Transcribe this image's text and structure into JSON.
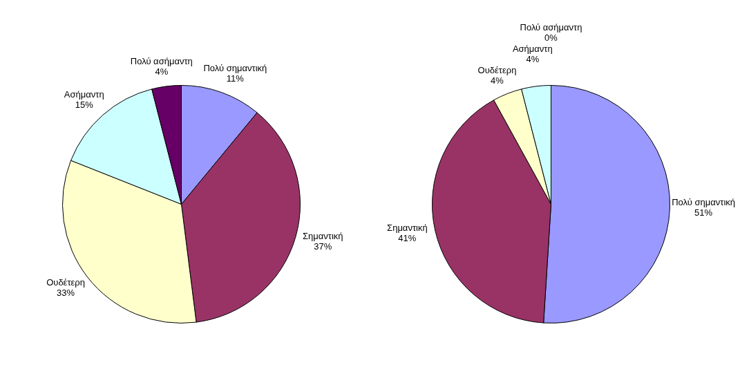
{
  "chart_data": [
    {
      "type": "pie",
      "categories": [
        "Πολύ σημαντική",
        "Σημαντική",
        "Ουδέτερη",
        "Ασήμαντη",
        "Πολύ ασήμαντη"
      ],
      "values": [
        11,
        37,
        33,
        15,
        4
      ],
      "colors": [
        "#9999ff",
        "#993366",
        "#ffffcc",
        "#ccffff",
        "#660066"
      ],
      "value_labels": [
        "11%",
        "37%",
        "33%",
        "15%",
        "4%"
      ],
      "legend": false
    },
    {
      "type": "pie",
      "categories": [
        "Πολύ σημαντική",
        "Σημαντική",
        "Ουδέτερη",
        "Ασήμαντη",
        "Πολύ ασήμαντη"
      ],
      "values": [
        51,
        41,
        4,
        4,
        0
      ],
      "colors": [
        "#9999ff",
        "#993366",
        "#ffffcc",
        "#ccffff",
        "#660066"
      ],
      "value_labels": [
        "51%",
        "41%",
        "4%",
        "4%",
        "0%"
      ],
      "legend": false
    }
  ]
}
